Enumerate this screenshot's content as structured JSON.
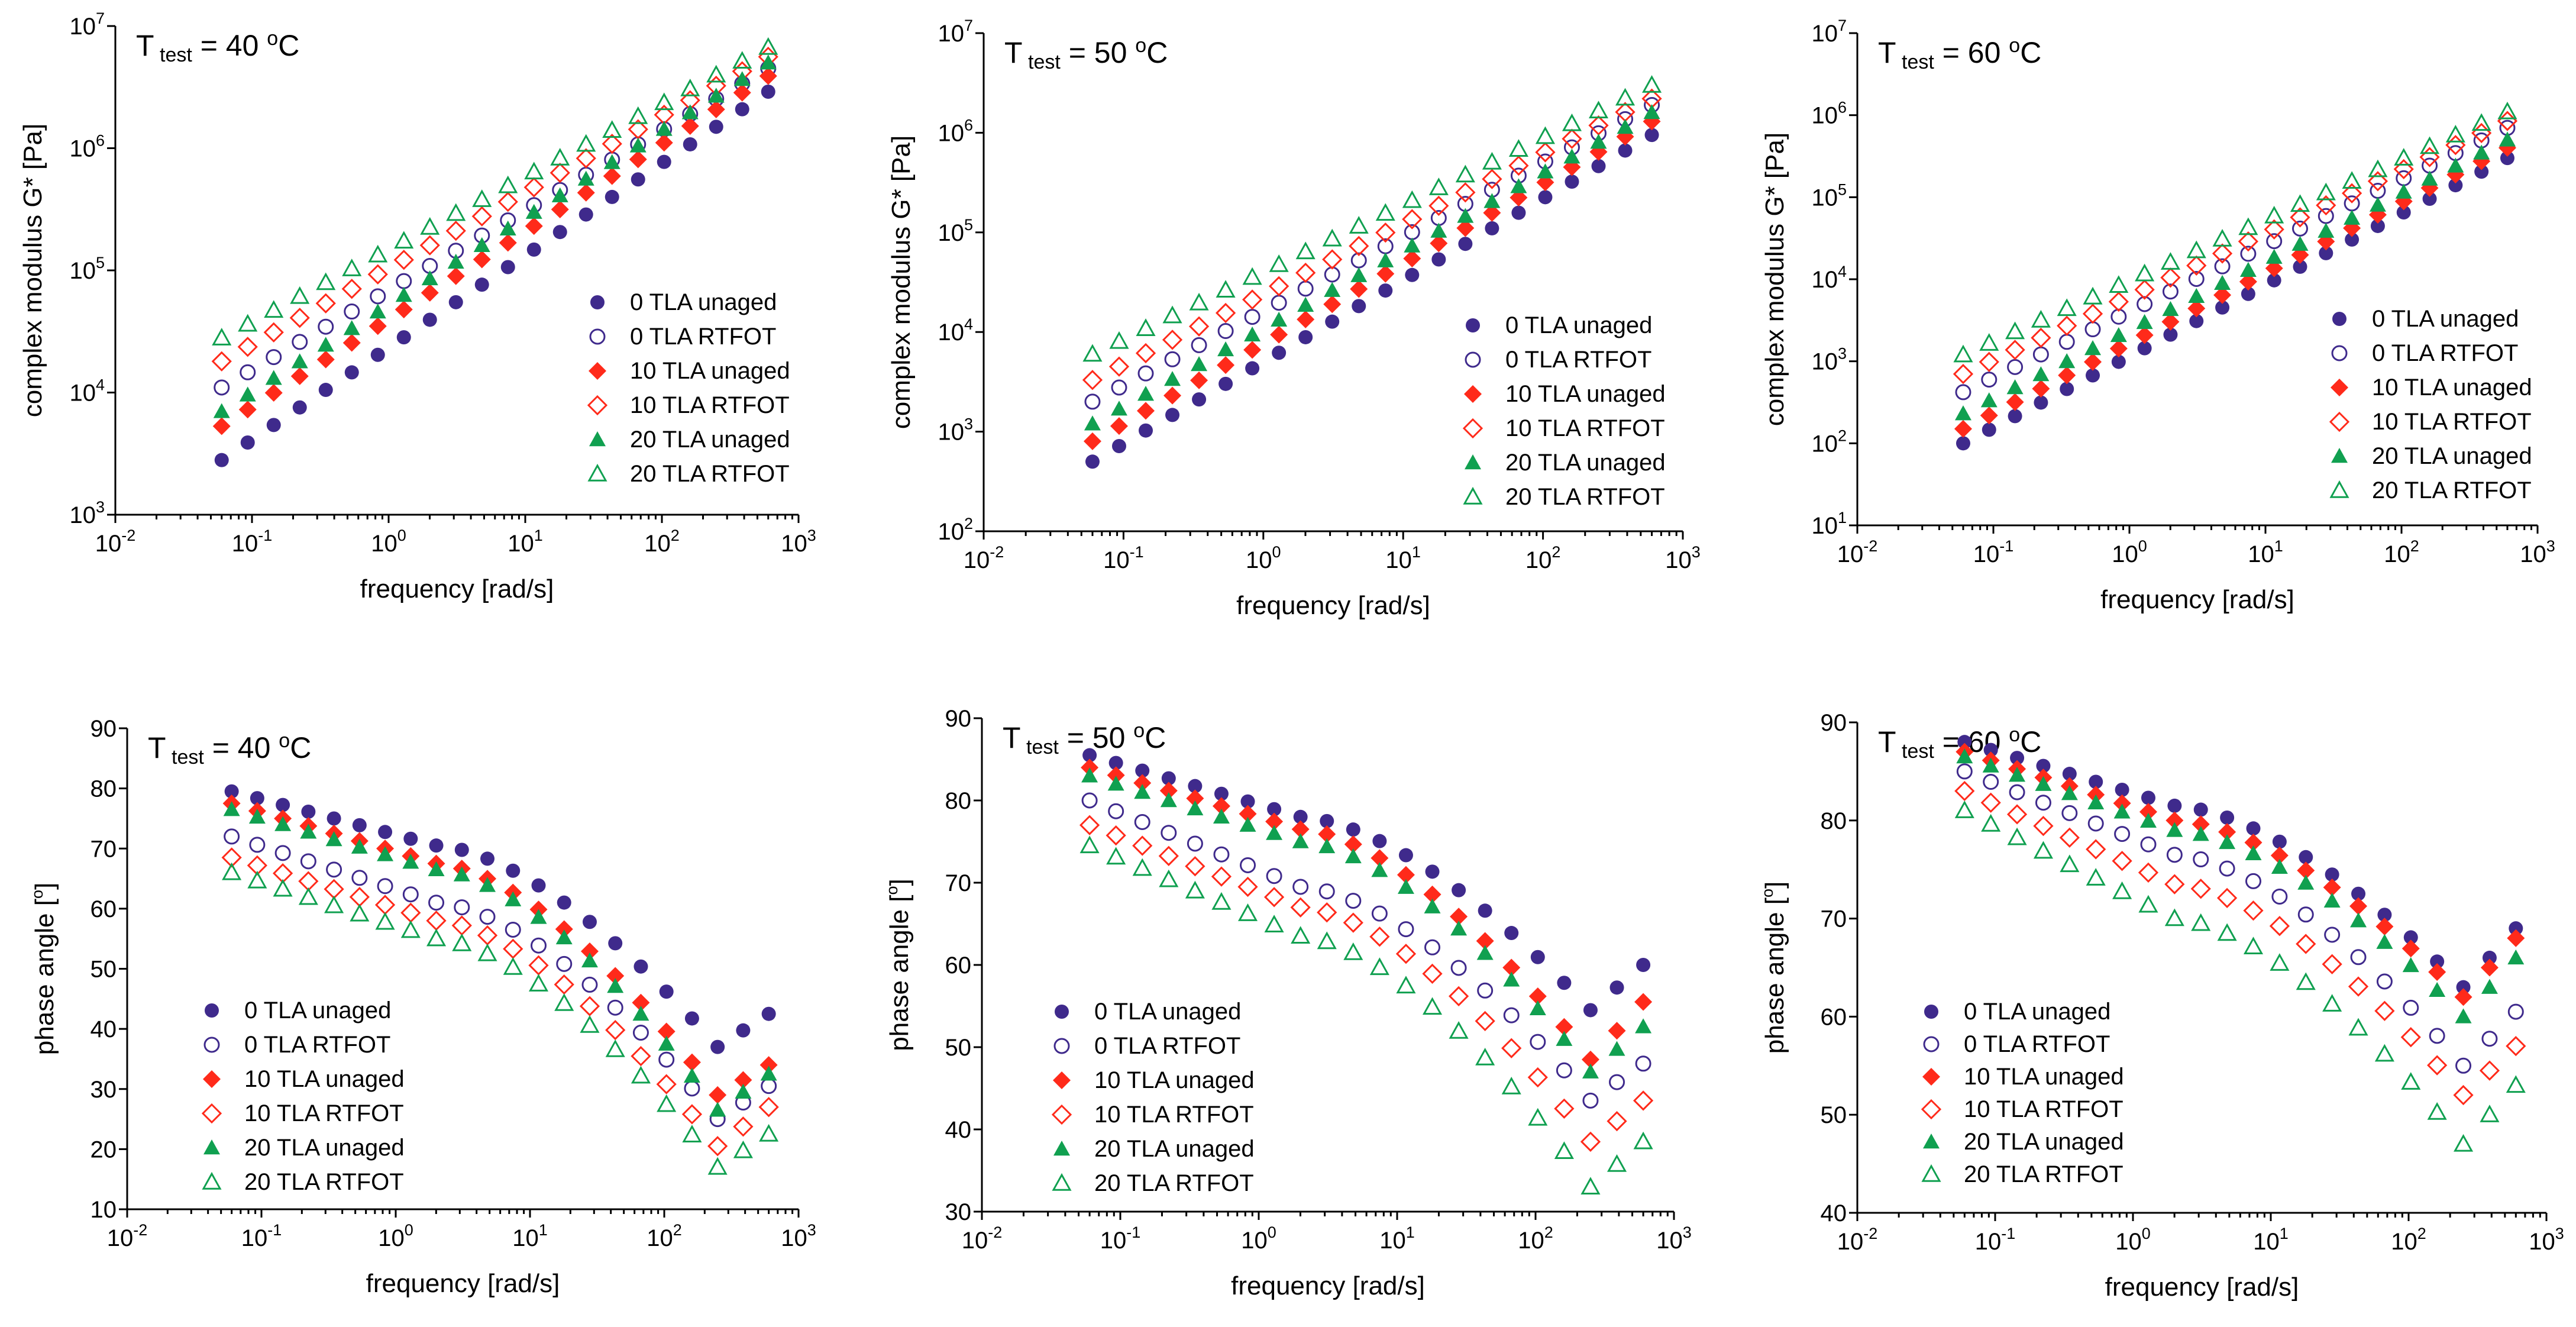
{
  "figure": {
    "colors": {
      "0 TLA": "#3f2a8c",
      "10 TLA": "#ff2a1a",
      "20 TLA": "#10a050"
    }
  },
  "chart_data": [
    {
      "type": "scatter",
      "title": "T test = 40 oC",
      "title_main": "T",
      "title_sub": "test",
      "title_value": "= 40",
      "title_unit": "C",
      "title_unit_sup": "o",
      "xlabel": "frequency [rad/s]",
      "ylabel": "complex modulus G* [Pa]",
      "xscale": "log",
      "yscale": "log",
      "xlim": [
        0.01,
        1000
      ],
      "ylim": [
        1000,
        10000000
      ],
      "x_ticks": [
        "10^-2",
        "10^-1",
        "10^0",
        "10^1",
        "10^2",
        "10^3"
      ],
      "y_ticks": [
        "10^3",
        "10^4",
        "10^5",
        "10^6",
        "10^7"
      ],
      "legend": [
        "0 TLA unaged",
        "0 TLA RTFOT",
        "10 TLA unaged",
        "10 TLA RTFOT",
        "20 TLA unaged",
        "20 TLA RTFOT"
      ],
      "legend_position": "bottom-right",
      "freq_start": 0.06,
      "freq_end": 600,
      "series": [
        {
          "name": "0 TLA unaged",
          "y_start": 2800,
          "y_end": 2900000
        },
        {
          "name": "0 TLA RTFOT",
          "y_start": 11000,
          "y_end": 4500000
        },
        {
          "name": "10 TLA unaged",
          "y_start": 5300,
          "y_end": 3900000
        },
        {
          "name": "10 TLA RTFOT",
          "y_start": 18000,
          "y_end": 5600000
        },
        {
          "name": "20 TLA unaged",
          "y_start": 7000,
          "y_end": 5000000
        },
        {
          "name": "20 TLA RTFOT",
          "y_start": 28000,
          "y_end": 6700000
        }
      ]
    },
    {
      "type": "scatter",
      "title": "T test = 50 oC",
      "title_main": "T",
      "title_sub": "test",
      "title_value": "= 50",
      "title_unit": "C",
      "title_unit_sup": "o",
      "xlabel": "frequency [rad/s]",
      "ylabel": "complex modulus G* [Pa]",
      "xscale": "log",
      "yscale": "log",
      "xlim": [
        0.01,
        1000
      ],
      "ylim": [
        100,
        10000000
      ],
      "x_ticks": [
        "10^-2",
        "10^-1",
        "10^0",
        "10^1",
        "10^2",
        "10^3"
      ],
      "y_ticks": [
        "10^2",
        "10^3",
        "10^4",
        "10^5",
        "10^6",
        "10^7"
      ],
      "legend": [
        "0 TLA unaged",
        "0 TLA RTFOT",
        "10 TLA unaged",
        "10 TLA RTFOT",
        "20 TLA unaged",
        "20 TLA RTFOT"
      ],
      "legend_position": "bottom-right",
      "freq_start": 0.06,
      "freq_end": 600,
      "series": [
        {
          "name": "0 TLA unaged",
          "y_start": 500,
          "y_end": 950000
        },
        {
          "name": "0 TLA RTFOT",
          "y_start": 2000,
          "y_end": 1900000
        },
        {
          "name": "10 TLA unaged",
          "y_start": 800,
          "y_end": 1300000
        },
        {
          "name": "10 TLA RTFOT",
          "y_start": 3300,
          "y_end": 2200000
        },
        {
          "name": "20 TLA unaged",
          "y_start": 1200,
          "y_end": 1600000
        },
        {
          "name": "20 TLA RTFOT",
          "y_start": 6000,
          "y_end": 3000000
        }
      ]
    },
    {
      "type": "scatter",
      "title": "T test = 60 oC",
      "title_main": "T",
      "title_sub": "test",
      "title_value": "= 60",
      "title_unit": "C",
      "title_unit_sup": "o",
      "xlabel": "frequency [rad/s]",
      "ylabel": "complex modulus G* [Pa]",
      "xscale": "log",
      "yscale": "log",
      "xlim": [
        0.01,
        1000
      ],
      "ylim": [
        10,
        10000000
      ],
      "x_ticks": [
        "10^-2",
        "10^-1",
        "10^0",
        "10^1",
        "10^2",
        "10^3"
      ],
      "y_ticks": [
        "10^1",
        "10^2",
        "10^3",
        "10^4",
        "10^5",
        "10^6",
        "10^7"
      ],
      "legend": [
        "0 TLA unaged",
        "0 TLA RTFOT",
        "10 TLA unaged",
        "10 TLA RTFOT",
        "20 TLA unaged",
        "20 TLA RTFOT"
      ],
      "legend_position": "bottom-right",
      "freq_start": 0.06,
      "freq_end": 600,
      "series": [
        {
          "name": "0 TLA unaged",
          "y_start": 100,
          "y_end": 300000
        },
        {
          "name": "0 TLA RTFOT",
          "y_start": 420,
          "y_end": 700000
        },
        {
          "name": "10 TLA unaged",
          "y_start": 150,
          "y_end": 400000
        },
        {
          "name": "10 TLA RTFOT",
          "y_start": 700,
          "y_end": 850000
        },
        {
          "name": "20 TLA unaged",
          "y_start": 230,
          "y_end": 500000
        },
        {
          "name": "20 TLA RTFOT",
          "y_start": 1200,
          "y_end": 1100000
        }
      ]
    },
    {
      "type": "scatter",
      "title": "Ttest = 40 oC",
      "title_main": "T",
      "title_sub": "test",
      "title_value": "= 40",
      "title_unit": "C",
      "title_unit_sup": "o",
      "xlabel": "frequency [rad/s]",
      "ylabel": "phase angle [o]",
      "ylabel_main": "phase angle [",
      "ylabel_sup": "o",
      "ylabel_end": "]",
      "xscale": "log",
      "yscale": "linear",
      "xlim": [
        0.01,
        1000
      ],
      "ylim": [
        10,
        90
      ],
      "x_ticks": [
        "10^-2",
        "10^-1",
        "10^0",
        "10^1",
        "10^2",
        "10^3"
      ],
      "y_ticks": [
        "10",
        "20",
        "30",
        "40",
        "50",
        "60",
        "70",
        "80",
        "90"
      ],
      "legend": [
        "0 TLA unaged",
        "0 TLA RTFOT",
        "10 TLA unaged",
        "10 TLA  RTFOT",
        "20 TLA unaged",
        "20 TLA RTFOT"
      ],
      "legend_position": "bottom-left",
      "freq_start": 0.06,
      "freq_end": 600,
      "series": [
        {
          "name": "0 TLA unaged",
          "y_start": 79.5,
          "y_mid": 70.5,
          "y_min": 37,
          "y_end": 42.5
        },
        {
          "name": "0 TLA RTFOT",
          "y_start": 72,
          "y_mid": 61,
          "y_min": 25,
          "y_end": 30.5
        },
        {
          "name": "10 TLA unaged",
          "y_start": 77.5,
          "y_mid": 67.5,
          "y_min": 29,
          "y_end": 34
        },
        {
          "name": "10 TLA  RTFOT",
          "y_start": 68.5,
          "y_mid": 58,
          "y_min": 20.5,
          "y_end": 27
        },
        {
          "name": "20 TLA unaged",
          "y_start": 76.5,
          "y_mid": 66.5,
          "y_min": 26.5,
          "y_end": 32.5
        },
        {
          "name": "20 TLA RTFOT",
          "y_start": 66,
          "y_mid": 55,
          "y_min": 17,
          "y_end": 22.5
        }
      ]
    },
    {
      "type": "scatter",
      "title": "Ttest = 50 oC",
      "title_main": "T",
      "title_sub": "test",
      "title_value": "= 50",
      "title_unit": "C",
      "title_unit_sup": "o",
      "xlabel": "frequency [rad/s]",
      "ylabel": "phase angle [o]",
      "ylabel_main": "phase angle [",
      "ylabel_sup": "o",
      "ylabel_end": "]",
      "xscale": "log",
      "yscale": "linear",
      "xlim": [
        0.01,
        1000
      ],
      "ylim": [
        30,
        90
      ],
      "x_ticks": [
        "10^-2",
        "10^-1",
        "10^0",
        "10^1",
        "10^2",
        "10^3"
      ],
      "y_ticks": [
        "30",
        "40",
        "50",
        "60",
        "70",
        "80",
        "90"
      ],
      "legend": [
        "0 TLA unaged",
        "0 TLA RTFOT",
        "10 TLA unaged",
        "10 TLA  RTFOT",
        "20 TLA unaged",
        "20 TLA RTFOT"
      ],
      "legend_position": "bottom-left",
      "freq_start": 0.06,
      "freq_end": 600,
      "series": [
        {
          "name": "0 TLA unaged",
          "y_start": 85.5,
          "y_mid": 78,
          "y_min": 54.5,
          "y_end": 60
        },
        {
          "name": "0 TLA RTFOT",
          "y_start": 80,
          "y_mid": 69.5,
          "y_min": 43.5,
          "y_end": 48
        },
        {
          "name": "10 TLA unaged",
          "y_start": 84,
          "y_mid": 76.5,
          "y_min": 48.5,
          "y_end": 55.5
        },
        {
          "name": "10 TLA  RTFOT",
          "y_start": 77,
          "y_mid": 67,
          "y_min": 38.5,
          "y_end": 43.5
        },
        {
          "name": "20 TLA unaged",
          "y_start": 83,
          "y_mid": 75,
          "y_min": 47,
          "y_end": 52.5
        },
        {
          "name": "20 TLA RTFOT",
          "y_start": 74.5,
          "y_mid": 63.5,
          "y_min": 33,
          "y_end": 38.5
        }
      ]
    },
    {
      "type": "scatter",
      "title": "Ttest = 60 oC",
      "title_main": "T",
      "title_sub": "test",
      "title_value": "= 60",
      "title_unit": "C",
      "title_unit_sup": "o",
      "xlabel": "frequency [rad/s]",
      "ylabel": "phase angle [o]",
      "ylabel_main": "phase angle [",
      "ylabel_sup": "o",
      "ylabel_end": "]",
      "xscale": "log",
      "yscale": "linear",
      "xlim": [
        0.01,
        1000
      ],
      "ylim": [
        40,
        90
      ],
      "x_ticks": [
        "10^-2",
        "10^-1",
        "10^0",
        "10^1",
        "10^2",
        "10^3"
      ],
      "y_ticks": [
        "40",
        "50",
        "60",
        "70",
        "80",
        "90"
      ],
      "legend": [
        "0 TLA unaged",
        "0 TLA RTFOT",
        "10 TLA unaged",
        "10 TLA  RTFOT",
        "20 TLA unaged",
        "20 TLA RTFOT"
      ],
      "legend_position": "bottom-left",
      "freq_start": 0.06,
      "freq_end": 600,
      "series": [
        {
          "name": "0 TLA unaged",
          "y_start": 88,
          "y_mid": 81.5,
          "y_min": 63,
          "y_end": 69
        },
        {
          "name": "0 TLA RTFOT",
          "y_start": 85,
          "y_mid": 76.5,
          "y_min": 55,
          "y_end": 60.5
        },
        {
          "name": "10 TLA unaged",
          "y_start": 87,
          "y_mid": 80,
          "y_min": 62,
          "y_end": 68
        },
        {
          "name": "10 TLA  RTFOT",
          "y_start": 83,
          "y_mid": 73.5,
          "y_min": 52,
          "y_end": 57
        },
        {
          "name": "20 TLA unaged",
          "y_start": 86.5,
          "y_mid": 79,
          "y_min": 60,
          "y_end": 66
        },
        {
          "name": "20 TLA RTFOT",
          "y_start": 81,
          "y_mid": 70,
          "y_min": 47,
          "y_end": 53
        }
      ]
    }
  ]
}
